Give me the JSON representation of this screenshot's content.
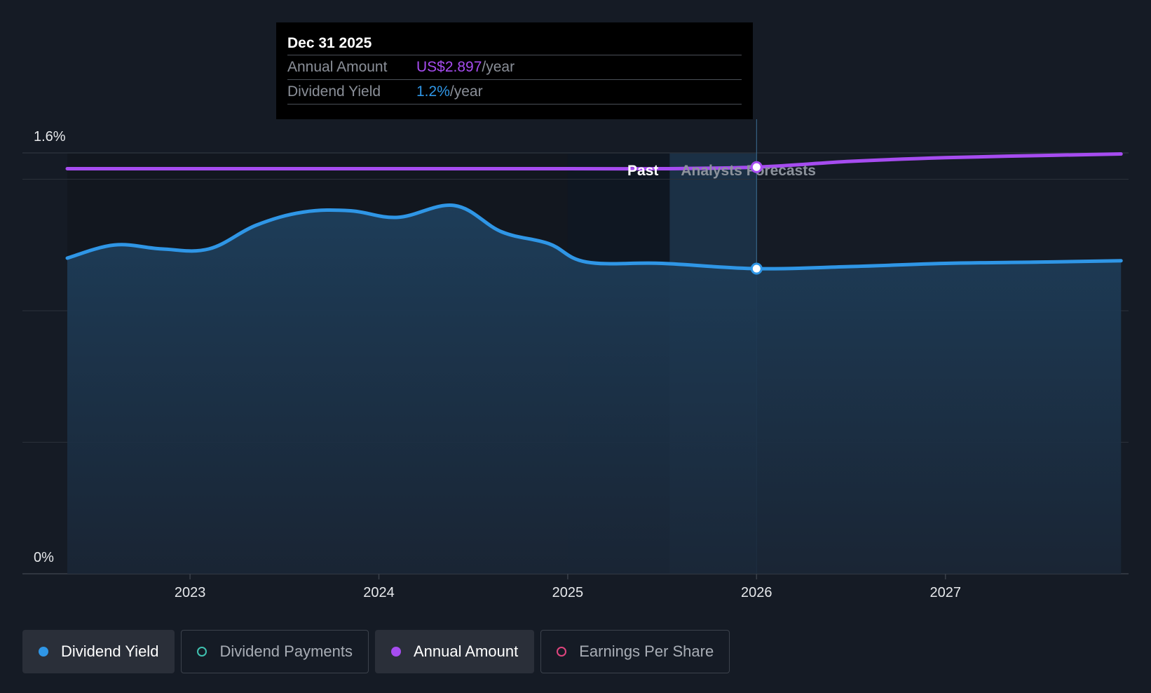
{
  "tooltip": {
    "date": "Dec 31 2025",
    "rows": [
      {
        "label": "Annual Amount",
        "value": "US$2.897",
        "unit": "/year",
        "color": "#a64cf0"
      },
      {
        "label": "Dividend Yield",
        "value": "1.2%",
        "unit": "/year",
        "color": "#2f96e6"
      }
    ]
  },
  "legend": [
    {
      "label": "Dividend Yield",
      "color": "#2f96e6",
      "filled": true,
      "active": true
    },
    {
      "label": "Dividend Payments",
      "color": "#3fc1b0",
      "filled": false,
      "active": false
    },
    {
      "label": "Annual Amount",
      "color": "#a64cf0",
      "filled": true,
      "active": true
    },
    {
      "label": "Earnings Per Share",
      "color": "#e0457e",
      "filled": false,
      "active": false
    }
  ],
  "chart_data": {
    "type": "line",
    "y_tick_labels": [
      "1.6%",
      "0%"
    ],
    "ylim": [
      0,
      1.6
    ],
    "x_tick_labels": [
      "2023",
      "2024",
      "2025",
      "2026",
      "2027"
    ],
    "xlim": [
      2022.3,
      2027.93
    ],
    "region_labels": {
      "past": "Past",
      "forecast": "Analysts Forecasts"
    },
    "past_end": 2025.54,
    "cursor_x": 2026.0,
    "series": [
      {
        "name": "Dividend Yield",
        "color": "#2f96e6",
        "area": true,
        "x": [
          2022.35,
          2022.6,
          2022.85,
          2023.1,
          2023.35,
          2023.6,
          2023.85,
          2024.1,
          2024.4,
          2024.65,
          2024.9,
          2025.1,
          2025.5,
          2026.0,
          2026.5,
          2027.0,
          2027.5,
          2027.93
        ],
        "y": [
          1.2,
          1.25,
          1.235,
          1.235,
          1.325,
          1.375,
          1.38,
          1.355,
          1.4,
          1.3,
          1.255,
          1.185,
          1.18,
          1.16,
          1.168,
          1.18,
          1.185,
          1.19
        ]
      },
      {
        "name": "Annual Amount",
        "color": "#a64cf0",
        "area": false,
        "x": [
          2022.35,
          2023.0,
          2024.0,
          2025.0,
          2025.5,
          2026.0,
          2026.5,
          2027.0,
          2027.5,
          2027.93
        ],
        "y": [
          1.54,
          1.54,
          1.54,
          1.54,
          1.54,
          1.546,
          1.568,
          1.582,
          1.59,
          1.596
        ]
      }
    ],
    "markers": [
      {
        "series": "Annual Amount",
        "x": 2026.0,
        "y": 1.546
      },
      {
        "series": "Dividend Yield",
        "x": 2026.0,
        "y": 1.16
      }
    ]
  }
}
